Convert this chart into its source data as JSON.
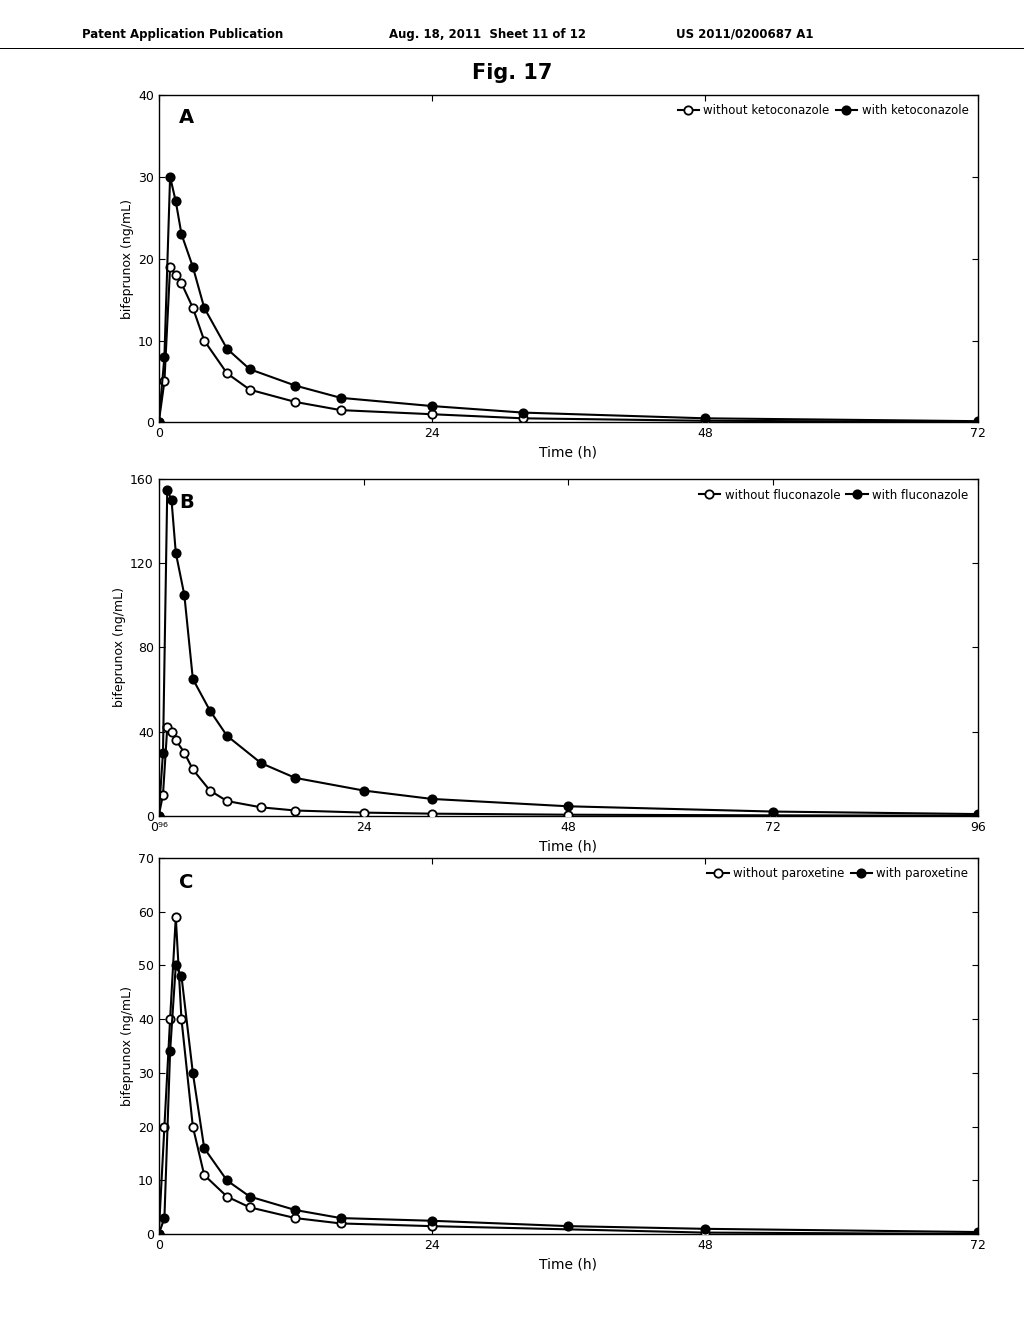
{
  "fig_title": "Fig. 17",
  "header_left": "Patent Application Publication",
  "header_mid": "Aug. 18, 2011  Sheet 11 of 12",
  "header_right": "US 2011/0200687 A1",
  "panel_A": {
    "label": "A",
    "ylabel": "bifeprunox (ng/mL)",
    "xlabel": "Time (h)",
    "ylim": [
      0,
      40
    ],
    "yticks": [
      0,
      10,
      20,
      30,
      40
    ],
    "xlim": [
      0,
      72
    ],
    "xticks": [
      0,
      24,
      48,
      72
    ],
    "xticklabels": [
      "0",
      "24",
      "48",
      "72"
    ],
    "legend1": "without ketoconazole",
    "legend2": "with ketoconazole",
    "open_x": [
      0,
      0.5,
      1,
      1.5,
      2,
      3,
      4,
      6,
      8,
      12,
      16,
      24,
      32,
      48,
      72
    ],
    "open_y": [
      0,
      5,
      19,
      18,
      17,
      14,
      10,
      6,
      4,
      2.5,
      1.5,
      1.0,
      0.5,
      0.2,
      0.05
    ],
    "filled_x": [
      0,
      0.5,
      1,
      1.5,
      2,
      3,
      4,
      6,
      8,
      12,
      16,
      24,
      32,
      48,
      72
    ],
    "filled_y": [
      0,
      8,
      30,
      27,
      23,
      19,
      14,
      9,
      6.5,
      4.5,
      3.0,
      2.0,
      1.2,
      0.5,
      0.15
    ]
  },
  "panel_B": {
    "label": "B",
    "ylabel": "bifeprunox (ng/mL)",
    "xlabel": "Time (h)",
    "ylim": [
      0,
      160
    ],
    "yticks": [
      0,
      40,
      80,
      120,
      160
    ],
    "xlim": [
      0,
      96
    ],
    "xticks": [
      0,
      24,
      48,
      72,
      96
    ],
    "xticklabels": [
      "0⁹⁶",
      "24",
      "48",
      "72",
      "96"
    ],
    "legend1": "without fluconazole",
    "legend2": "with fluconazole",
    "open_x": [
      0,
      0.5,
      1,
      1.5,
      2,
      3,
      4,
      6,
      8,
      12,
      16,
      24,
      32,
      48,
      72,
      96
    ],
    "open_y": [
      0,
      10,
      42,
      40,
      36,
      30,
      22,
      12,
      7,
      4,
      2.5,
      1.5,
      1.0,
      0.5,
      0.2,
      0.05
    ],
    "filled_x": [
      0,
      0.5,
      1,
      1.5,
      2,
      3,
      4,
      6,
      8,
      12,
      16,
      24,
      32,
      48,
      72,
      96
    ],
    "filled_y": [
      0,
      30,
      155,
      150,
      125,
      105,
      65,
      50,
      38,
      25,
      18,
      12,
      8,
      4.5,
      2.0,
      0.8
    ]
  },
  "panel_C": {
    "label": "C",
    "ylabel": "bifeprunox (ng/mL)",
    "xlabel": "Time (h)",
    "ylim": [
      0,
      70
    ],
    "yticks": [
      0,
      10,
      20,
      30,
      40,
      50,
      60,
      70
    ],
    "xlim": [
      0,
      72
    ],
    "xticks": [
      0,
      24,
      48,
      72
    ],
    "xticklabels": [
      "0",
      "24",
      "48",
      "72"
    ],
    "legend1": "without paroxetine",
    "legend2": "with paroxetine",
    "open_x": [
      0,
      0.5,
      1,
      1.5,
      2,
      3,
      4,
      6,
      8,
      12,
      16,
      24,
      48,
      72
    ],
    "open_y": [
      0,
      20,
      40,
      59,
      40,
      20,
      11,
      7,
      5,
      3,
      2,
      1.5,
      0.3,
      0.05
    ],
    "filled_x": [
      0,
      0.5,
      1,
      1.5,
      2,
      3,
      4,
      6,
      8,
      12,
      16,
      24,
      36,
      48,
      72
    ],
    "filled_y": [
      0,
      3,
      34,
      50,
      48,
      30,
      16,
      10,
      7,
      4.5,
      3,
      2.5,
      1.5,
      1.0,
      0.4
    ]
  },
  "bg_color": "#ffffff",
  "line_color": "#000000",
  "markersize": 6,
  "linewidth": 1.5
}
